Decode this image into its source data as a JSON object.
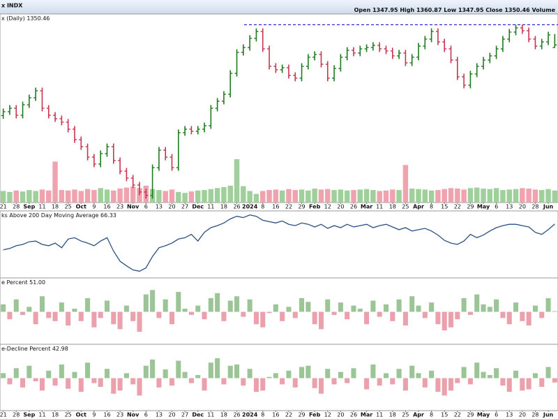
{
  "symbol": "x INDX",
  "header_labels": {
    "open": "Open",
    "high": "High",
    "low": "Low",
    "close": "Close",
    "volume": "Volume"
  },
  "chart_data": [
    {
      "type": "ohlc",
      "title": "x (Daily)",
      "categories": [
        "21",
        null,
        "28",
        null,
        "Sep",
        null,
        "11",
        null,
        "18",
        null,
        "25",
        null,
        "Oct",
        null,
        "9",
        null,
        "16",
        null,
        "23",
        null,
        "Nov",
        null,
        "6",
        null,
        "13",
        null,
        "20",
        null,
        "27",
        null,
        "Dec",
        null,
        "11",
        null,
        "18",
        null,
        "26",
        null,
        "2024",
        null,
        "8",
        null,
        "16",
        null,
        "22",
        null,
        "29",
        null,
        "Feb",
        null,
        "12",
        null,
        "20",
        null,
        "26",
        null,
        "Mar",
        null,
        "11",
        null,
        "18",
        null,
        "25",
        null,
        "Apr",
        null,
        "8",
        null,
        "15",
        null,
        "22",
        null,
        "29",
        null,
        "May",
        null,
        "6",
        null,
        "13",
        null,
        "20",
        null,
        "28",
        null,
        "Jun",
        null
      ],
      "open": [
        1283.0,
        1286.7,
        1290.0,
        1283.3,
        1293.3,
        1300.0,
        1306.7,
        1290.0,
        1283.3,
        1280.0,
        1276.7,
        1270.0,
        1260.0,
        1253.3,
        1243.3,
        1236.7,
        1246.7,
        1253.3,
        1240.0,
        1230.0,
        1223.3,
        1216.7,
        1210.0,
        1206.7,
        1233.3,
        1250.0,
        1243.3,
        1233.3,
        1266.7,
        1270.0,
        1268.0,
        1270.0,
        1273.3,
        1290.0,
        1296.7,
        1303.3,
        1323.3,
        1343.3,
        1348.0,
        1356.7,
        1363.3,
        1346.7,
        1330.0,
        1326.7,
        1328.7,
        1321.3,
        1318.7,
        1330.0,
        1338.7,
        1341.3,
        1332.0,
        1318.7,
        1328.0,
        1338.7,
        1345.3,
        1342.7,
        1346.7,
        1348.0,
        1350.0,
        1346.7,
        1344.7,
        1340.0,
        1342.7,
        1333.3,
        1338.7,
        1349.3,
        1356.0,
        1363.3,
        1353.3,
        1346.7,
        1336.0,
        1320.0,
        1312.0,
        1322.7,
        1330.0,
        1336.0,
        1340.0,
        1346.7,
        1356.0,
        1362.7,
        1366.7,
        1364.0,
        1356.0,
        1349.3,
        1353.3,
        1347.95
      ],
      "high": [
        1289.7,
        1293.0,
        1293.0,
        1296.3,
        1303.0,
        1309.7,
        1309.7,
        1293.0,
        1286.3,
        1283.0,
        1279.7,
        1273.0,
        1263.0,
        1256.3,
        1246.3,
        1249.7,
        1256.3,
        1256.3,
        1243.0,
        1233.0,
        1226.3,
        1219.7,
        1213.0,
        1236.3,
        1253.0,
        1253.0,
        1246.3,
        1269.7,
        1273.0,
        1273.0,
        1273.0,
        1276.3,
        1293.0,
        1299.7,
        1306.3,
        1326.3,
        1346.3,
        1351.0,
        1359.7,
        1366.3,
        1366.3,
        1349.7,
        1333.0,
        1331.7,
        1331.7,
        1324.3,
        1333.0,
        1341.7,
        1344.3,
        1344.3,
        1335.0,
        1331.0,
        1341.7,
        1348.3,
        1348.3,
        1349.7,
        1351.0,
        1353.0,
        1353.0,
        1349.7,
        1347.7,
        1345.7,
        1345.7,
        1341.7,
        1352.3,
        1359.0,
        1366.3,
        1366.3,
        1356.3,
        1349.7,
        1339.0,
        1323.0,
        1325.7,
        1333.0,
        1339.0,
        1343.0,
        1349.7,
        1359.0,
        1365.7,
        1369.7,
        1369.7,
        1367.0,
        1359.0,
        1356.3,
        1363.0,
        1360.87
      ],
      "low": [
        1280.0,
        1283.7,
        1280.3,
        1280.3,
        1290.3,
        1297.0,
        1287.0,
        1280.3,
        1277.0,
        1273.7,
        1267.0,
        1257.0,
        1250.3,
        1240.3,
        1233.7,
        1233.7,
        1243.7,
        1237.0,
        1227.0,
        1220.3,
        1213.7,
        1207.0,
        1203.7,
        1203.7,
        1230.3,
        1240.3,
        1230.3,
        1230.3,
        1263.7,
        1265.0,
        1265.0,
        1267.0,
        1270.3,
        1287.0,
        1293.7,
        1300.3,
        1320.3,
        1340.3,
        1345.0,
        1353.7,
        1343.7,
        1327.0,
        1323.7,
        1323.7,
        1318.3,
        1315.7,
        1315.7,
        1327.0,
        1335.7,
        1329.0,
        1315.7,
        1315.7,
        1325.0,
        1335.7,
        1339.7,
        1339.7,
        1343.7,
        1345.0,
        1343.7,
        1341.7,
        1337.0,
        1337.0,
        1330.3,
        1330.3,
        1335.7,
        1346.3,
        1353.0,
        1350.3,
        1343.7,
        1333.0,
        1317.0,
        1309.0,
        1309.0,
        1319.7,
        1327.0,
        1333.0,
        1337.0,
        1343.7,
        1353.0,
        1359.7,
        1361.0,
        1353.0,
        1346.3,
        1346.3,
        1350.3,
        1347.95
      ],
      "close": [
        1286.7,
        1290.0,
        1283.3,
        1293.3,
        1300.0,
        1306.7,
        1290.0,
        1283.3,
        1280.0,
        1276.7,
        1270.0,
        1260.0,
        1253.3,
        1243.3,
        1236.7,
        1246.7,
        1253.3,
        1240.0,
        1230.0,
        1223.3,
        1216.7,
        1210.0,
        1206.7,
        1233.3,
        1250.0,
        1243.3,
        1233.3,
        1266.7,
        1270.0,
        1268.0,
        1270.0,
        1273.3,
        1290.0,
        1296.7,
        1303.3,
        1323.3,
        1343.3,
        1348.0,
        1356.7,
        1363.3,
        1346.7,
        1330.0,
        1326.7,
        1328.7,
        1321.3,
        1318.7,
        1330.0,
        1338.7,
        1341.3,
        1332.0,
        1318.7,
        1328.0,
        1338.7,
        1345.3,
        1342.7,
        1346.7,
        1348.0,
        1350.0,
        1346.7,
        1344.7,
        1340.0,
        1342.7,
        1333.3,
        1338.7,
        1349.3,
        1356.0,
        1363.3,
        1353.3,
        1346.7,
        1336.0,
        1320.0,
        1312.0,
        1322.7,
        1330.0,
        1336.0,
        1340.0,
        1346.7,
        1356.0,
        1362.7,
        1366.7,
        1364.0,
        1356.0,
        1349.3,
        1353.3,
        1360.0,
        1350.46
      ],
      "up_color": "#1f7a1f",
      "down_color": "#c8344f",
      "ylim": [
        1200,
        1380
      ],
      "reference_line": {
        "value": 1369.7,
        "color": "#1a1acc",
        "style": "dashed"
      },
      "volume": {
        "values": [
          24,
          22,
          25,
          23,
          26,
          24,
          27,
          25,
          85,
          26,
          25,
          27,
          24,
          28,
          26,
          30,
          27,
          25,
          29,
          31,
          33,
          30,
          35,
          28,
          26,
          24,
          27,
          22,
          20,
          23,
          25,
          26,
          28,
          30,
          32,
          35,
          90,
          34,
          24,
          18,
          24,
          26,
          27,
          25,
          28,
          26,
          27,
          25,
          29,
          27,
          28,
          26,
          27,
          25,
          26,
          27,
          28,
          26,
          24,
          25,
          27,
          26,
          78,
          29,
          28,
          27,
          25,
          26,
          28,
          30,
          29,
          27,
          30,
          31,
          29,
          28,
          30,
          26,
          27,
          28,
          30,
          29,
          27,
          26,
          28,
          25
        ],
        "ylim": [
          0,
          90
        ],
        "up_color": "#9fcf9a",
        "down_color": "#eea3ae"
      }
    },
    {
      "type": "line",
      "title": "ks Above 200 Day Moving Average",
      "color": "#2b4f80",
      "ylim": [
        10,
        80
      ],
      "values": [
        39.4,
        40.8,
        43.6,
        45.0,
        47.8,
        48.5,
        45.0,
        43.6,
        46.4,
        41.5,
        50.6,
        52.0,
        48.5,
        46.4,
        43.6,
        48.5,
        52.0,
        38.0,
        27.5,
        22.6,
        18.4,
        17.0,
        20.5,
        32.4,
        41.5,
        43.6,
        46.4,
        50.6,
        52.0,
        55.5,
        48.5,
        57.6,
        62.5,
        64.6,
        67.4,
        71.6,
        74.4,
        73.0,
        75.8,
        74.4,
        70.2,
        68.8,
        67.4,
        69.5,
        66.0,
        64.6,
        67.4,
        66.0,
        63.2,
        66.0,
        61.8,
        64.6,
        62.5,
        66.0,
        63.2,
        64.6,
        66.0,
        62.5,
        64.6,
        66.0,
        63.2,
        60.4,
        62.5,
        59.0,
        60.4,
        61.8,
        59.0,
        54.8,
        49.2,
        46.4,
        45.0,
        48.5,
        55.5,
        52.0,
        54.8,
        59.0,
        62.5,
        64.6,
        66.0,
        66.0,
        64.6,
        63.2,
        57.6,
        55.5,
        60.4,
        66.33
      ]
    },
    {
      "type": "bar",
      "title": "e Percent",
      "current_label": "51.00",
      "ylim": [
        0,
        100
      ],
      "baseline": 50,
      "up_color": "#9cc597",
      "down_color": "#eba1ac",
      "values": [
        62,
        38,
        70,
        45,
        58,
        30,
        75,
        40,
        35,
        65,
        28,
        55,
        35,
        72,
        25,
        40,
        68,
        30,
        22,
        60,
        35,
        18,
        78,
        85,
        40,
        70,
        30,
        82,
        55,
        45,
        60,
        38,
        72,
        80,
        35,
        68,
        75,
        42,
        70,
        30,
        25,
        48,
        62,
        35,
        58,
        40,
        72,
        66,
        30,
        22,
        70,
        45,
        65,
        38,
        60,
        55,
        30,
        68,
        42,
        62,
        35,
        70,
        28,
        75,
        60,
        40,
        65,
        30,
        20,
        25,
        38,
        72,
        45,
        78,
        62,
        58,
        70,
        40,
        30,
        65,
        35,
        28,
        60,
        40,
        72,
        51.0
      ]
    },
    {
      "type": "bar",
      "title": "e-Decline Percent",
      "current_label": "42.98",
      "ylim": [
        0,
        100
      ],
      "baseline": 50,
      "up_color": "#9cc597",
      "down_color": "#eba1ac",
      "values": [
        58,
        40,
        66,
        35,
        70,
        45,
        30,
        62,
        38,
        72,
        33,
        60,
        28,
        75,
        42,
        36,
        65,
        25,
        30,
        58,
        40,
        22,
        70,
        80,
        35,
        64,
        38,
        78,
        60,
        42,
        55,
        30,
        75,
        82,
        40,
        70,
        72,
        38,
        65,
        28,
        30,
        52,
        58,
        40,
        62,
        35,
        68,
        70,
        34,
        25,
        65,
        40,
        60,
        42,
        66,
        50,
        32,
        72,
        38,
        58,
        40,
        65,
        30,
        70,
        58,
        35,
        62,
        28,
        22,
        30,
        42,
        68,
        40,
        75,
        60,
        55,
        66,
        38,
        28,
        62,
        30,
        32,
        58,
        36,
        68,
        42.98
      ]
    }
  ]
}
